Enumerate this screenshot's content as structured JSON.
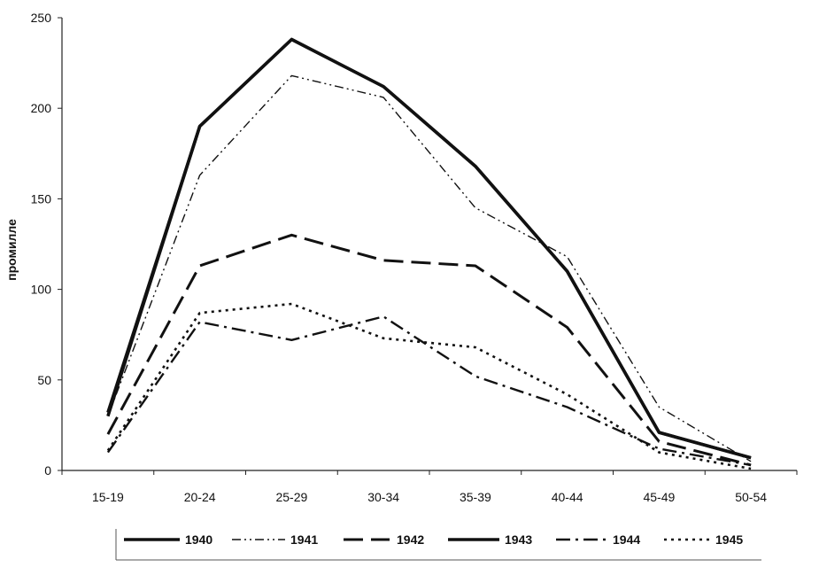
{
  "chart_data": {
    "type": "line",
    "title": "",
    "xlabel": "",
    "ylabel": "промилле",
    "categories": [
      "15-19",
      "20-24",
      "25-29",
      "30-34",
      "35-39",
      "40-44",
      "45-49",
      "50-54"
    ],
    "ylim": [
      0,
      250
    ],
    "yticks": [
      0,
      50,
      100,
      150,
      200,
      250
    ],
    "grid": false,
    "legend_position": "bottom",
    "series": [
      {
        "name": "1940",
        "values": [
          32,
          190,
          238,
          212,
          168,
          110,
          21,
          7
        ],
        "style": "solid"
      },
      {
        "name": "1941",
        "values": [
          30,
          163,
          218,
          206,
          145,
          118,
          35,
          5
        ],
        "style": "dash-dot-dot"
      },
      {
        "name": "1942",
        "values": [
          20,
          113,
          130,
          116,
          113,
          79,
          16,
          3
        ],
        "style": "long-dash"
      },
      {
        "name": "1943",
        "values": [
          30,
          190,
          238,
          212,
          168,
          110,
          21,
          7
        ],
        "style": "solid"
      },
      {
        "name": "1944",
        "values": [
          10,
          82,
          72,
          85,
          52,
          35,
          12,
          3
        ],
        "style": "dash-dot"
      },
      {
        "name": "1945",
        "values": [
          11,
          87,
          92,
          73,
          68,
          42,
          10,
          1
        ],
        "style": "dotted"
      }
    ]
  }
}
